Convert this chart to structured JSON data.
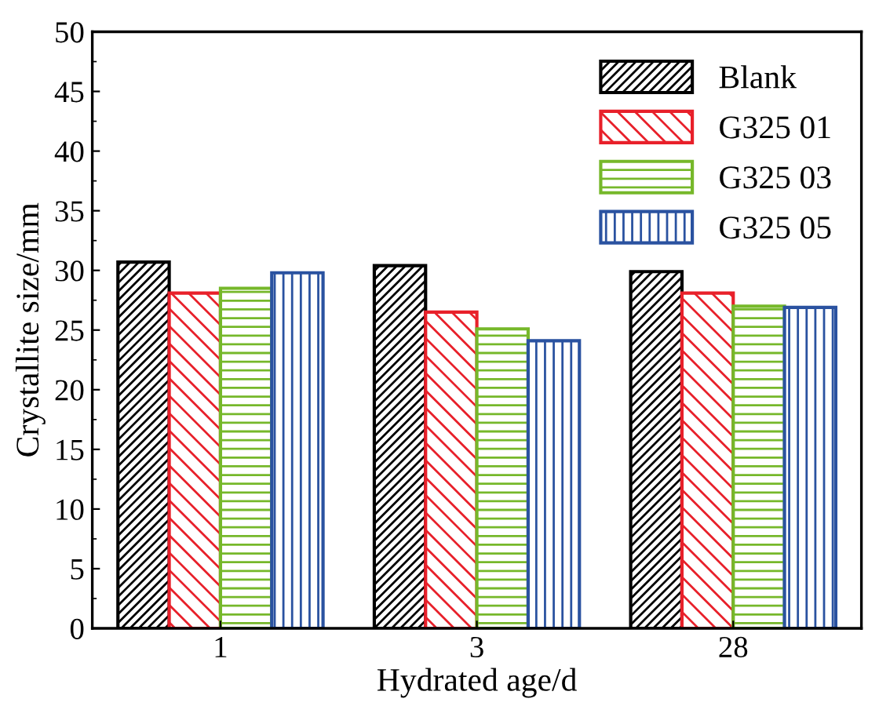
{
  "chart_data": {
    "type": "bar",
    "xlabel": "Hydrated age/d",
    "ylabel": "Crystallite size/mm",
    "categories": [
      "1",
      "3",
      "28"
    ],
    "series": [
      {
        "name": "Blank",
        "color": "#000000",
        "values": [
          30.7,
          30.4,
          29.9
        ]
      },
      {
        "name": "G325 01",
        "color": "#e8202a",
        "values": [
          28.1,
          26.5,
          28.1
        ]
      },
      {
        "name": "G325 03",
        "color": "#76b82a",
        "values": [
          28.5,
          25.1,
          27.0
        ]
      },
      {
        "name": "G325 05",
        "color": "#2a52a0",
        "values": [
          29.8,
          24.1,
          26.9
        ]
      }
    ],
    "ylim": [
      0,
      50
    ],
    "yticks": [
      0,
      5,
      10,
      15,
      20,
      25,
      30,
      35,
      40,
      45,
      50
    ],
    "grid": false,
    "legend": "top right"
  }
}
